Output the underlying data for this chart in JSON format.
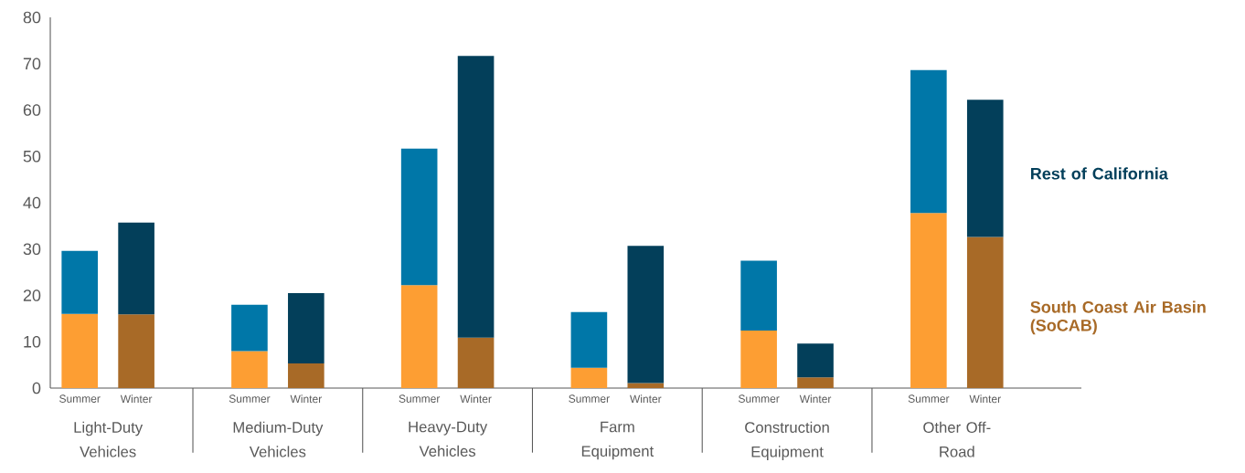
{
  "chart_data": {
    "type": "bar",
    "stacked": true,
    "categories": [
      "Summer",
      "Winter",
      "Summer",
      "Winter",
      "Summer",
      "Winter",
      "Summer",
      "Winter",
      "Summer",
      "Winter",
      "Summer",
      "Winter"
    ],
    "series": [
      {
        "name": "South Coast Air Basin (SoCAB)",
        "color": "#a86a27",
        "colors": [
          "#fd9e33",
          "#a86a27",
          "#fd9e33",
          "#a86a27",
          "#fd9e33",
          "#a86a27",
          "#fd9e33",
          "#a86a27",
          "#fd9e33",
          "#a86a27",
          "#fd9e33",
          "#a86a27"
        ],
        "values": [
          16,
          15.9,
          8,
          5.3,
          22.2,
          10.9,
          4.4,
          1.1,
          12.4,
          2.3,
          37.8,
          32.6
        ]
      },
      {
        "name": "Rest of California",
        "color": "#033f5a",
        "colors": [
          "#0077a8",
          "#033f5a",
          "#0077a8",
          "#033f5a",
          "#0077a8",
          "#033f5a",
          "#0077a8",
          "#033f5a",
          "#0077a8",
          "#033f5a",
          "#0077a8",
          "#033f5a"
        ],
        "values": [
          13.6,
          19.8,
          10,
          15.2,
          29.5,
          60.8,
          12,
          29.6,
          15.1,
          7.3,
          30.8,
          29.6
        ]
      }
    ],
    "ylim": [
      0,
      80
    ],
    "yticks": [
      0,
      10,
      20,
      30,
      40,
      50,
      60,
      70,
      80
    ],
    "annotations": [
      "Light-Duty Vehicles",
      "Medium-Duty Vehicles",
      "Heavy-Duty Vehicles",
      "Farm Equipment",
      "Construction Equipment",
      "Other Off-Road"
    ]
  }
}
